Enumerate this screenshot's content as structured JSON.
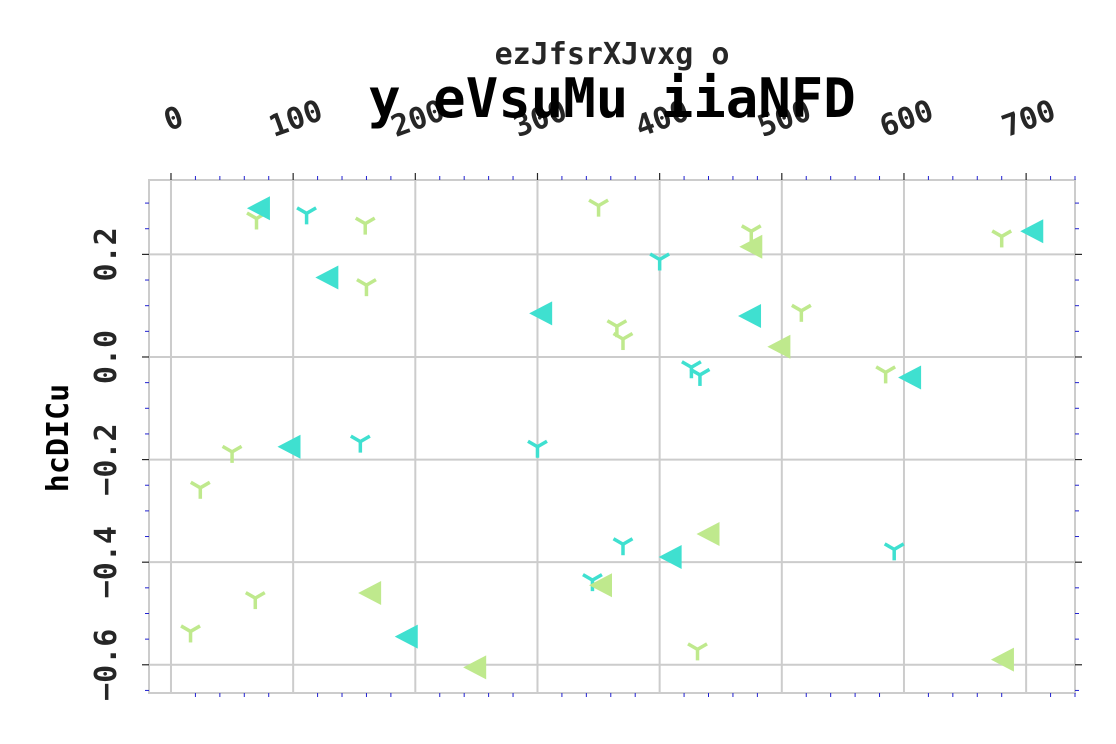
{
  "chart_data": {
    "type": "scatter",
    "title": "y eVsuMu iiaNFD",
    "subtitle": "ezJfsrXJvxg o",
    "xlabel": "",
    "ylabel": "hcDICu",
    "xlim": [
      -18,
      740
    ],
    "ylim": [
      -0.655,
      0.345
    ],
    "x_ticks": [
      0,
      100,
      200,
      300,
      400,
      500,
      600,
      700
    ],
    "x_tick_labels": [
      "0",
      "100",
      "200",
      "300",
      "400",
      "500",
      "600",
      "700"
    ],
    "y_ticks": [
      -0.6,
      -0.4,
      -0.2,
      0.0,
      0.2
    ],
    "y_tick_labels": [
      "−0.6",
      "−0.4",
      "−0.2",
      "0.0",
      "0.2"
    ],
    "x_axis_position": "top",
    "grid": true,
    "colors": {
      "cyan": "#3fe0d0",
      "green": "#bfe98d",
      "grid": "#cccccc",
      "minor_tick": "#2020d0",
      "text": "#262626"
    },
    "series": [
      {
        "marker": "tri-down",
        "color": "#3fe0d0",
        "points": [
          {
            "x": 111,
            "y": 0.28
          },
          {
            "x": 400,
            "y": 0.19
          },
          {
            "x": 426,
            "y": -0.02
          },
          {
            "x": 433,
            "y": -0.035
          },
          {
            "x": 155,
            "y": -0.165
          },
          {
            "x": 300,
            "y": -0.175
          },
          {
            "x": 370,
            "y": -0.365
          },
          {
            "x": 345,
            "y": -0.435
          },
          {
            "x": 592,
            "y": -0.375
          }
        ]
      },
      {
        "marker": "tri-down",
        "color": "#bfe98d",
        "points": [
          {
            "x": 70,
            "y": 0.27
          },
          {
            "x": 159,
            "y": 0.26
          },
          {
            "x": 350,
            "y": 0.295
          },
          {
            "x": 475,
            "y": 0.245
          },
          {
            "x": 680,
            "y": 0.235
          },
          {
            "x": 160,
            "y": 0.14
          },
          {
            "x": 365,
            "y": 0.06
          },
          {
            "x": 370,
            "y": 0.035
          },
          {
            "x": 516,
            "y": 0.09
          },
          {
            "x": 585,
            "y": -0.03
          },
          {
            "x": 50,
            "y": -0.185
          },
          {
            "x": 24,
            "y": -0.255
          },
          {
            "x": 69,
            "y": -0.47
          },
          {
            "x": 16,
            "y": -0.535
          },
          {
            "x": 431,
            "y": -0.57
          }
        ]
      },
      {
        "marker": "triangle-left",
        "color": "#3fe0d0",
        "points": [
          {
            "x": 72,
            "y": 0.29
          },
          {
            "x": 128,
            "y": 0.155
          },
          {
            "x": 303,
            "y": 0.085
          },
          {
            "x": 474,
            "y": 0.08
          },
          {
            "x": 705,
            "y": 0.245
          },
          {
            "x": 605,
            "y": -0.04
          },
          {
            "x": 97,
            "y": -0.175
          },
          {
            "x": 193,
            "y": -0.545
          },
          {
            "x": 409,
            "y": -0.39
          }
        ]
      },
      {
        "marker": "triangle-left",
        "color": "#bfe98d",
        "points": [
          {
            "x": 475,
            "y": 0.215
          },
          {
            "x": 498,
            "y": 0.02
          },
          {
            "x": 440,
            "y": -0.345
          },
          {
            "x": 163,
            "y": -0.46
          },
          {
            "x": 352,
            "y": -0.445
          },
          {
            "x": 249,
            "y": -0.605
          },
          {
            "x": 681,
            "y": -0.59
          }
        ]
      }
    ]
  }
}
